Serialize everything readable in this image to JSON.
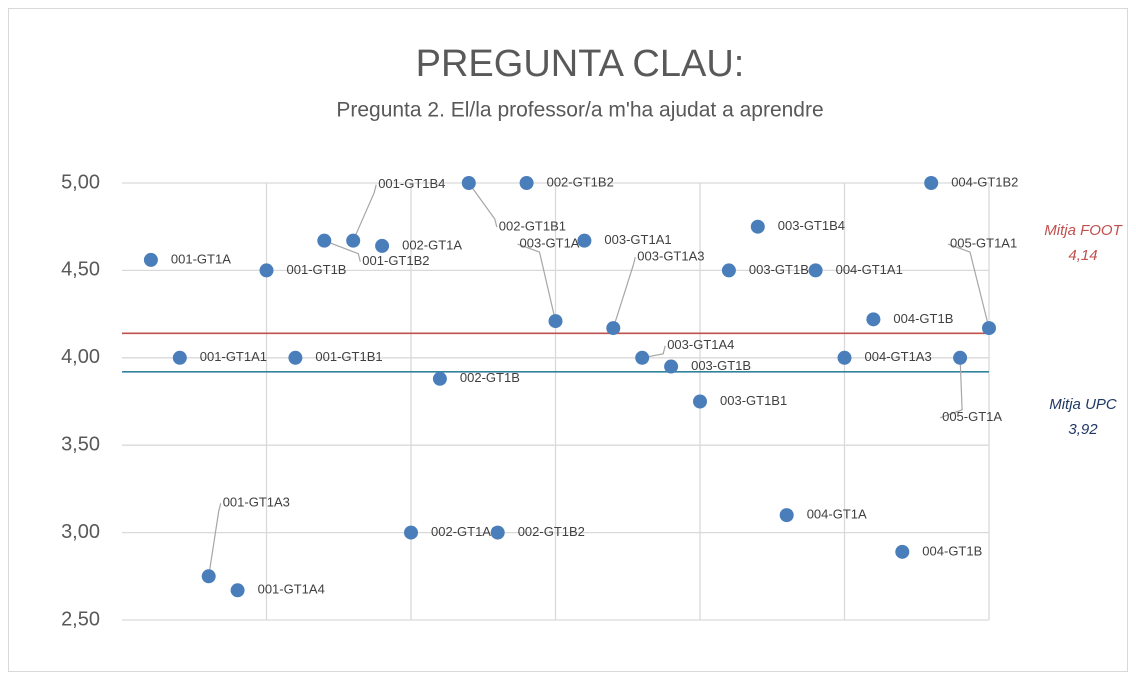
{
  "chart_data": {
    "type": "scatter",
    "title": "PREGUNTA CLAU:",
    "subtitle": "Pregunta 2. El/la professor/a m'ha ajudat a aprendre",
    "series": [
      {
        "color": "#4a7ebb",
        "x": [
          1,
          2,
          3,
          4,
          5,
          6,
          7,
          8,
          9,
          10,
          11,
          12,
          13,
          14,
          15,
          16,
          17,
          18,
          19,
          20,
          21,
          22,
          23,
          24,
          25,
          26,
          27,
          28,
          29,
          30
        ],
        "values": [
          4.56,
          4.0,
          2.75,
          2.67,
          4.5,
          4.0,
          4.67,
          4.67,
          4.64,
          3.0,
          3.88,
          5.0,
          3.0,
          5.0,
          4.21,
          4.67,
          4.17,
          4.0,
          3.95,
          3.75,
          4.5,
          4.75,
          3.1,
          4.5,
          4.0,
          4.22,
          2.89,
          5.0,
          4.0,
          4.17
        ],
        "labels": [
          "001-GT1A",
          "001-GT1A1",
          "001-GT1A3",
          "001-GT1A4",
          "001-GT1B",
          "001-GT1B1",
          "001-GT1B2",
          "001-GT1B4",
          "002-GT1A",
          "002-GT1A3",
          "002-GT1B",
          "002-GT1B1",
          "002-GT1B2",
          "002-GT1B2",
          "003-GT1A",
          "003-GT1A1",
          "003-GT1A3",
          "003-GT1A4",
          "003-GT1B",
          "003-GT1B1",
          "003-GT1B2",
          "003-GT1B4",
          "004-GT1A",
          "004-GT1A1",
          "004-GT1A3",
          "004-GT1B",
          "004-GT1B",
          "004-GT1B2",
          "005-GT1A",
          "005-GT1A1"
        ]
      }
    ],
    "reference_lines": [
      {
        "name": "Mitja FOOT",
        "value": 4.14,
        "label": "4,14",
        "color": "#c0504d",
        "text_color": "#c0504d"
      },
      {
        "name": "Mitja UPC",
        "value": 3.92,
        "label": "3,92",
        "color": "#31849b",
        "text_color": "#1f3864"
      }
    ],
    "xlim": [
      0,
      30
    ],
    "xticks": [
      5,
      10,
      15,
      20,
      25,
      30
    ],
    "ylim": [
      2.5,
      5.0
    ],
    "yticks": [
      {
        "value": 2.5,
        "label": "2,50"
      },
      {
        "value": 3.0,
        "label": "3,00"
      },
      {
        "value": 3.5,
        "label": "3,50"
      },
      {
        "value": 4.0,
        "label": "4,00"
      },
      {
        "value": 4.5,
        "label": "4,50"
      },
      {
        "value": 5.0,
        "label": "5,00"
      }
    ],
    "grid": true
  }
}
